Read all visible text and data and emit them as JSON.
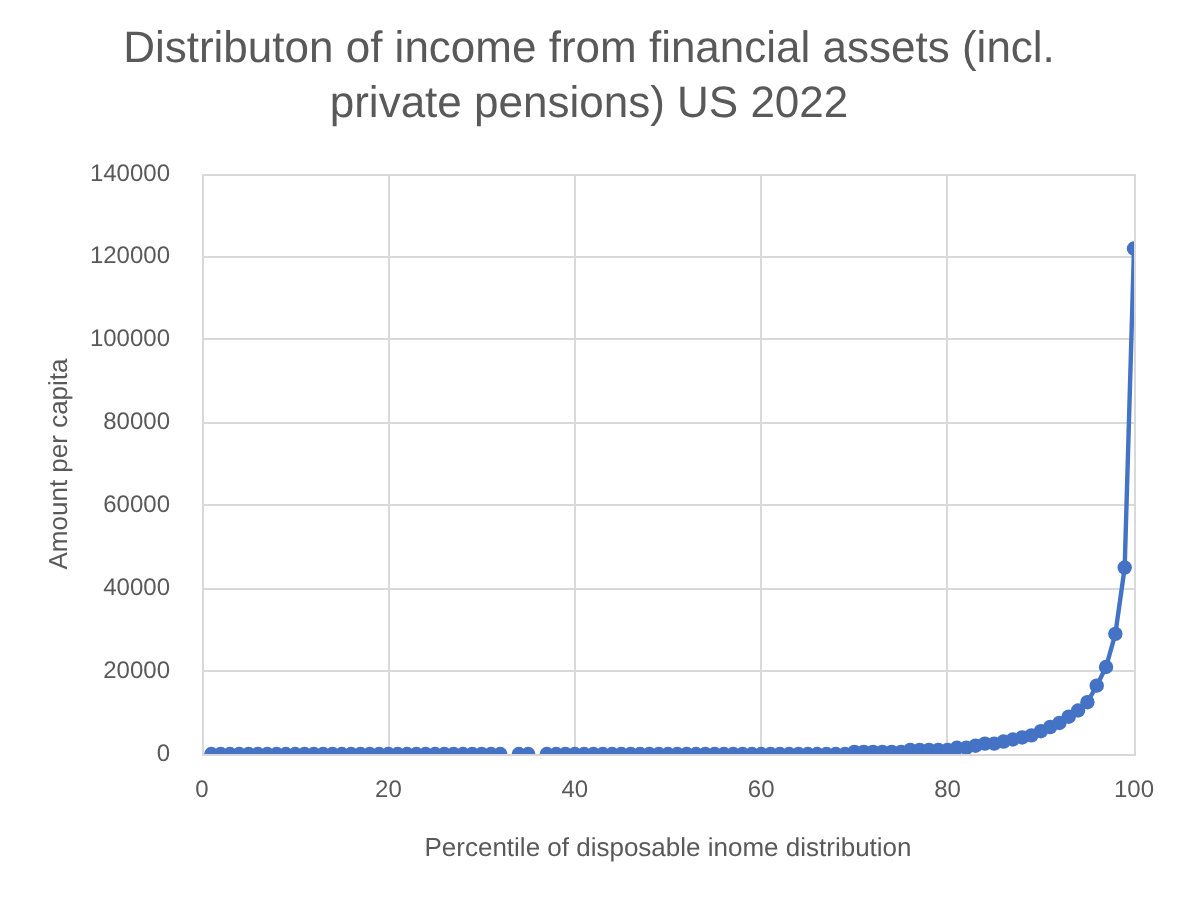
{
  "chart_data": {
    "type": "line",
    "title": "Distributon of income from financial assets (incl. private pensions) US 2022",
    "xlabel": "Percentile of disposable inome distribution",
    "ylabel": "Amount per capita",
    "color": "#4472c4",
    "marker": "circle",
    "line_style": "solid",
    "grid": true,
    "x": [
      1,
      2,
      3,
      4,
      5,
      6,
      7,
      8,
      9,
      10,
      11,
      12,
      13,
      14,
      15,
      16,
      17,
      18,
      19,
      20,
      21,
      22,
      23,
      24,
      25,
      26,
      27,
      28,
      29,
      30,
      31,
      32,
      33,
      34,
      35,
      36,
      37,
      38,
      39,
      40,
      41,
      42,
      43,
      44,
      45,
      46,
      47,
      48,
      49,
      50,
      51,
      52,
      53,
      54,
      55,
      56,
      57,
      58,
      59,
      60,
      61,
      62,
      63,
      64,
      65,
      66,
      67,
      68,
      69,
      70,
      71,
      72,
      73,
      74,
      75,
      76,
      77,
      78,
      79,
      80,
      81,
      82,
      83,
      84,
      85,
      86,
      87,
      88,
      89,
      90,
      91,
      92,
      93,
      94,
      95,
      96,
      97,
      98,
      99,
      100
    ],
    "values": [
      0,
      0,
      0,
      0,
      0,
      0,
      0,
      0,
      0,
      0,
      0,
      0,
      0,
      0,
      0,
      0,
      0,
      0,
      0,
      0,
      0,
      0,
      0,
      0,
      0,
      0,
      0,
      0,
      0,
      0,
      0,
      0,
      null,
      0,
      0,
      null,
      0,
      0,
      0,
      0,
      0,
      0,
      0,
      0,
      0,
      0,
      0,
      0,
      0,
      0,
      0,
      0,
      0,
      0,
      0,
      0,
      0,
      0,
      0,
      0,
      0,
      0,
      0,
      0,
      0,
      0,
      0,
      0,
      0,
      500,
      500,
      500,
      500,
      500,
      500,
      1000,
      1000,
      1000,
      1000,
      1000,
      1500,
      1500,
      2000,
      2500,
      2500,
      3000,
      3500,
      4000,
      4500,
      5500,
      6500,
      7500,
      9000,
      10500,
      12500,
      16500,
      21000,
      29000,
      45000,
      122000
    ],
    "xlim": [
      0,
      100
    ],
    "xticks": [
      0,
      20,
      40,
      60,
      80,
      100
    ],
    "ylim": [
      0,
      140000
    ],
    "yticks": [
      0,
      20000,
      40000,
      60000,
      80000,
      100000,
      120000,
      140000
    ]
  }
}
